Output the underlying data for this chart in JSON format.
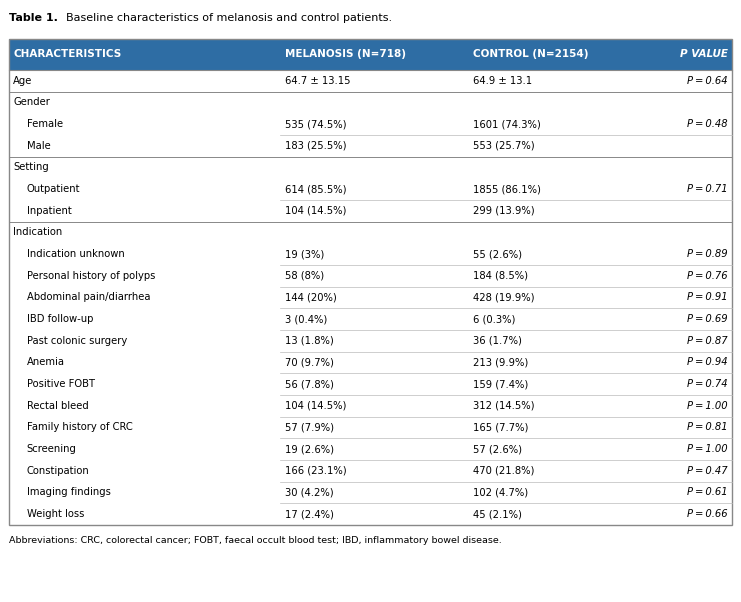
{
  "title_bold": "Table 1.",
  "title_rest": "  Baseline characteristics of melanosis and control patients.",
  "header": [
    "CHARACTERISTICS",
    "MELANOSIS (N=718)",
    "CONTROL (N=2154)",
    "P VALUE"
  ],
  "header_bg": "#2E6DA4",
  "header_fg": "#FFFFFF",
  "rows": [
    {
      "label": "Age",
      "mel": "64.7 ± 13.15",
      "ctrl": "64.9 ± 13.1",
      "p": "P = 0.64",
      "indent": 0,
      "is_group": false,
      "show_divider": true
    },
    {
      "label": "Gender",
      "mel": "",
      "ctrl": "",
      "p": "",
      "indent": 0,
      "is_group": true,
      "show_divider": false
    },
    {
      "label": "Female",
      "mel": "535 (74.5%)",
      "ctrl": "1601 (74.3%)",
      "p": "P = 0.48",
      "indent": 1,
      "is_group": false,
      "show_divider": true
    },
    {
      "label": "Male",
      "mel": "183 (25.5%)",
      "ctrl": "553 (25.7%)",
      "p": "",
      "indent": 1,
      "is_group": false,
      "show_divider": false
    },
    {
      "label": "Setting",
      "mel": "",
      "ctrl": "",
      "p": "",
      "indent": 0,
      "is_group": true,
      "show_divider": false
    },
    {
      "label": "Outpatient",
      "mel": "614 (85.5%)",
      "ctrl": "1855 (86.1%)",
      "p": "P = 0.71",
      "indent": 1,
      "is_group": false,
      "show_divider": true
    },
    {
      "label": "Inpatient",
      "mel": "104 (14.5%)",
      "ctrl": "299 (13.9%)",
      "p": "",
      "indent": 1,
      "is_group": false,
      "show_divider": false
    },
    {
      "label": "Indication",
      "mel": "",
      "ctrl": "",
      "p": "",
      "indent": 0,
      "is_group": true,
      "show_divider": false
    },
    {
      "label": "Indication unknown",
      "mel": "19 (3%)",
      "ctrl": "55 (2.6%)",
      "p": "P = 0.89",
      "indent": 1,
      "is_group": false,
      "show_divider": true
    },
    {
      "label": "Personal history of polyps",
      "mel": "58 (8%)",
      "ctrl": "184 (8.5%)",
      "p": "P = 0.76",
      "indent": 1,
      "is_group": false,
      "show_divider": true
    },
    {
      "label": "Abdominal pain/diarrhea",
      "mel": "144 (20%)",
      "ctrl": "428 (19.9%)",
      "p": "P = 0.91",
      "indent": 1,
      "is_group": false,
      "show_divider": true
    },
    {
      "label": "IBD follow-up",
      "mel": "3 (0.4%)",
      "ctrl": "6 (0.3%)",
      "p": "P = 0.69",
      "indent": 1,
      "is_group": false,
      "show_divider": true
    },
    {
      "label": "Past colonic surgery",
      "mel": "13 (1.8%)",
      "ctrl": "36 (1.7%)",
      "p": "P = 0.87",
      "indent": 1,
      "is_group": false,
      "show_divider": true
    },
    {
      "label": "Anemia",
      "mel": "70 (9.7%)",
      "ctrl": "213 (9.9%)",
      "p": "P = 0.94",
      "indent": 1,
      "is_group": false,
      "show_divider": true
    },
    {
      "label": "Positive FOBT",
      "mel": "56 (7.8%)",
      "ctrl": "159 (7.4%)",
      "p": "P = 0.74",
      "indent": 1,
      "is_group": false,
      "show_divider": true
    },
    {
      "label": "Rectal bleed",
      "mel": "104 (14.5%)",
      "ctrl": "312 (14.5%)",
      "p": "P = 1.00",
      "indent": 1,
      "is_group": false,
      "show_divider": true
    },
    {
      "label": "Family history of CRC",
      "mel": "57 (7.9%)",
      "ctrl": "165 (7.7%)",
      "p": "P = 0.81",
      "indent": 1,
      "is_group": false,
      "show_divider": true
    },
    {
      "label": "Screening",
      "mel": "19 (2.6%)",
      "ctrl": "57 (2.6%)",
      "p": "P = 1.00",
      "indent": 1,
      "is_group": false,
      "show_divider": true
    },
    {
      "label": "Constipation",
      "mel": "166 (23.1%)",
      "ctrl": "470 (21.8%)",
      "p": "P = 0.47",
      "indent": 1,
      "is_group": false,
      "show_divider": true
    },
    {
      "label": "Imaging findings",
      "mel": "30 (4.2%)",
      "ctrl": "102 (4.7%)",
      "p": "P = 0.61",
      "indent": 1,
      "is_group": false,
      "show_divider": true
    },
    {
      "label": "Weight loss",
      "mel": "17 (2.4%)",
      "ctrl": "45 (2.1%)",
      "p": "P = 0.66",
      "indent": 1,
      "is_group": false,
      "show_divider": false
    }
  ],
  "footnote": "Abbreviations: CRC, colorectal cancer; FOBT, faecal occult blood test; IBD, inflammatory bowel disease.",
  "border_color": "#888888",
  "divider_color": "#BBBBBB",
  "group_divider_color": "#888888",
  "bg_color": "#FFFFFF",
  "font_size": 7.2,
  "header_font_size": 7.5,
  "title_font_size": 8.0
}
